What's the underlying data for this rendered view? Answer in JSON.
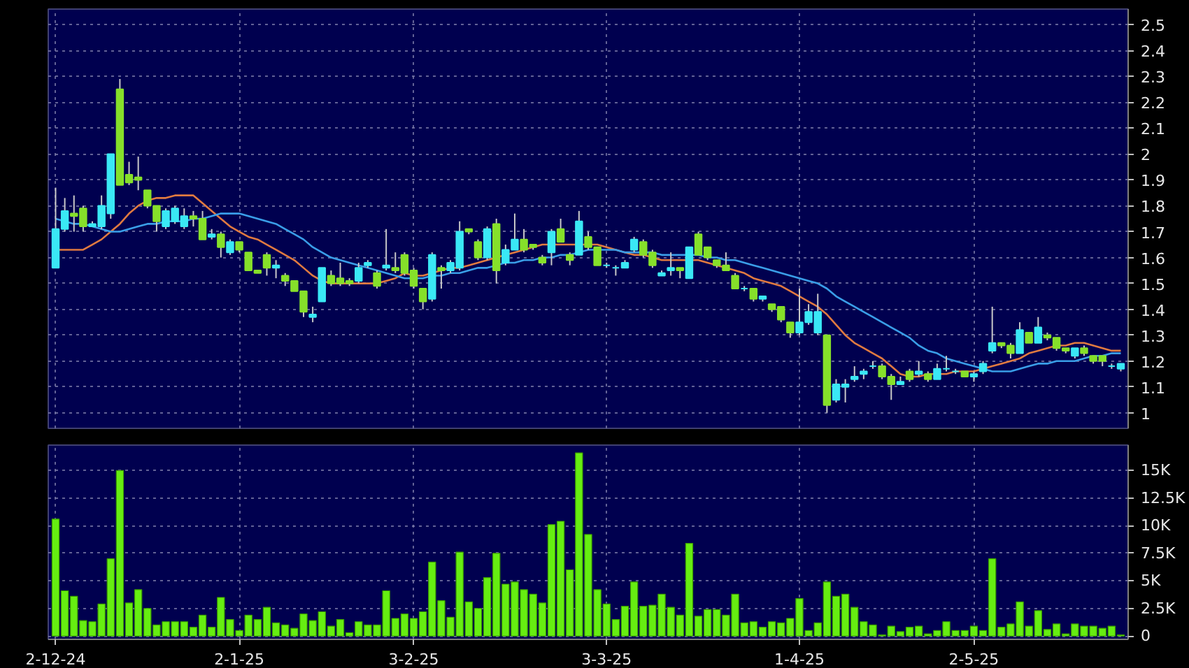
{
  "chart_data": [
    {
      "type": "candlestick",
      "categories": [
        null,
        null,
        null,
        null,
        null,
        null,
        null,
        null,
        null,
        null,
        null,
        null,
        null,
        null,
        null,
        null,
        null,
        null,
        null,
        null,
        null,
        null,
        null,
        null,
        null,
        null,
        null,
        null,
        null,
        null,
        null,
        null,
        null,
        null,
        null,
        null,
        null,
        null,
        null,
        null,
        null,
        null,
        null,
        null,
        null,
        null,
        null,
        null,
        null,
        null,
        null,
        null,
        null,
        null,
        null,
        null,
        null,
        null,
        null,
        null,
        null,
        null,
        null,
        null,
        null,
        null,
        null,
        null,
        null,
        null,
        null,
        null,
        null,
        null,
        null,
        null,
        null,
        null,
        null,
        null,
        null,
        null,
        null,
        null,
        null,
        null,
        null,
        null,
        null,
        null,
        null,
        null,
        null,
        null,
        null,
        null,
        null,
        null,
        null,
        null,
        null,
        null,
        null,
        null,
        null,
        null,
        null,
        null,
        null,
        null,
        null,
        null,
        null,
        null,
        null,
        null,
        null
      ],
      "ohlc": [
        [
          1.56,
          1.87,
          1.56,
          1.71
        ],
        [
          1.71,
          1.83,
          1.7,
          1.78
        ],
        [
          1.77,
          1.84,
          1.7,
          1.76
        ],
        [
          1.79,
          1.8,
          1.7,
          1.72
        ],
        [
          1.72,
          1.74,
          1.72,
          1.73
        ],
        [
          1.72,
          1.84,
          1.71,
          1.8
        ],
        [
          1.77,
          2.0,
          1.75,
          2.0
        ],
        [
          2.25,
          2.29,
          1.88,
          1.88
        ],
        [
          1.92,
          1.97,
          1.88,
          1.89
        ],
        [
          1.91,
          1.99,
          1.86,
          1.9
        ],
        [
          1.86,
          1.86,
          1.79,
          1.8
        ],
        [
          1.8,
          1.8,
          1.7,
          1.74
        ],
        [
          1.72,
          1.79,
          1.71,
          1.78
        ],
        [
          1.74,
          1.8,
          1.73,
          1.79
        ],
        [
          1.72,
          1.79,
          1.71,
          1.76
        ],
        [
          1.76,
          1.78,
          1.72,
          1.75
        ],
        [
          1.75,
          1.78,
          1.67,
          1.67
        ],
        [
          1.68,
          1.71,
          1.67,
          1.69
        ],
        [
          1.69,
          1.7,
          1.6,
          1.64
        ],
        [
          1.62,
          1.67,
          1.61,
          1.66
        ],
        [
          1.66,
          1.66,
          1.62,
          1.63
        ],
        [
          1.62,
          1.62,
          1.55,
          1.55
        ],
        [
          1.55,
          1.55,
          1.54,
          1.54
        ],
        [
          1.61,
          1.62,
          1.53,
          1.56
        ],
        [
          1.56,
          1.59,
          1.52,
          1.57
        ],
        [
          1.53,
          1.54,
          1.49,
          1.51
        ],
        [
          1.51,
          1.51,
          1.47,
          1.47
        ],
        [
          1.47,
          1.47,
          1.37,
          1.39
        ],
        [
          1.37,
          1.41,
          1.35,
          1.38
        ],
        [
          1.43,
          1.56,
          1.43,
          1.56
        ],
        [
          1.53,
          1.55,
          1.49,
          1.5
        ],
        [
          1.52,
          1.58,
          1.49,
          1.5
        ],
        [
          1.51,
          1.52,
          1.49,
          1.5
        ],
        [
          1.51,
          1.58,
          1.5,
          1.56
        ],
        [
          1.57,
          1.59,
          1.56,
          1.58
        ],
        [
          1.54,
          1.55,
          1.48,
          1.49
        ],
        [
          1.56,
          1.71,
          1.55,
          1.57
        ],
        [
          1.56,
          1.62,
          1.54,
          1.55
        ],
        [
          1.61,
          1.62,
          1.53,
          1.54
        ],
        [
          1.55,
          1.56,
          1.48,
          1.49
        ],
        [
          1.48,
          1.48,
          1.4,
          1.43
        ],
        [
          1.44,
          1.62,
          1.43,
          1.61
        ],
        [
          1.56,
          1.57,
          1.48,
          1.55
        ],
        [
          1.55,
          1.59,
          1.54,
          1.58
        ],
        [
          1.56,
          1.74,
          1.55,
          1.7
        ],
        [
          1.71,
          1.71,
          1.69,
          1.7
        ],
        [
          1.66,
          1.67,
          1.59,
          1.6
        ],
        [
          1.6,
          1.72,
          1.59,
          1.71
        ],
        [
          1.73,
          1.75,
          1.5,
          1.55
        ],
        [
          1.58,
          1.65,
          1.57,
          1.63
        ],
        [
          1.63,
          1.77,
          1.63,
          1.67
        ],
        [
          1.67,
          1.71,
          1.62,
          1.63
        ],
        [
          1.65,
          1.65,
          1.63,
          1.64
        ],
        [
          1.6,
          1.61,
          1.57,
          1.58
        ],
        [
          1.62,
          1.71,
          1.57,
          1.7
        ],
        [
          1.71,
          1.75,
          1.66,
          1.66
        ],
        [
          1.61,
          1.62,
          1.57,
          1.59
        ],
        [
          1.61,
          1.78,
          1.61,
          1.74
        ],
        [
          1.68,
          1.7,
          1.63,
          1.64
        ],
        [
          1.64,
          1.64,
          1.57,
          1.57
        ],
        [
          1.57,
          1.58,
          1.56,
          1.57
        ],
        [
          1.56,
          1.57,
          1.53,
          1.56
        ],
        [
          1.56,
          1.59,
          1.56,
          1.58
        ],
        [
          1.63,
          1.68,
          1.62,
          1.67
        ],
        [
          1.66,
          1.67,
          1.6,
          1.61
        ],
        [
          1.62,
          1.63,
          1.56,
          1.57
        ],
        [
          1.53,
          1.55,
          1.53,
          1.54
        ],
        [
          1.55,
          1.62,
          1.53,
          1.56
        ],
        [
          1.56,
          1.56,
          1.52,
          1.55
        ],
        [
          1.52,
          1.64,
          1.52,
          1.64
        ],
        [
          1.69,
          1.7,
          1.61,
          1.61
        ],
        [
          1.64,
          1.64,
          1.59,
          1.6
        ],
        [
          1.59,
          1.59,
          1.56,
          1.57
        ],
        [
          1.57,
          1.62,
          1.55,
          1.55
        ],
        [
          1.53,
          1.54,
          1.48,
          1.48
        ],
        [
          1.48,
          1.49,
          1.47,
          1.48
        ],
        [
          1.48,
          1.48,
          1.43,
          1.44
        ],
        [
          1.44,
          1.45,
          1.43,
          1.45
        ],
        [
          1.42,
          1.42,
          1.39,
          1.4
        ],
        [
          1.41,
          1.41,
          1.35,
          1.36
        ],
        [
          1.35,
          1.35,
          1.29,
          1.31
        ],
        [
          1.31,
          1.48,
          1.3,
          1.35
        ],
        [
          1.35,
          1.42,
          1.34,
          1.39
        ],
        [
          1.31,
          1.46,
          1.3,
          1.39
        ],
        [
          1.3,
          1.3,
          1.0,
          1.03
        ],
        [
          1.05,
          1.13,
          1.04,
          1.11
        ],
        [
          1.1,
          1.13,
          1.04,
          1.11
        ],
        [
          1.13,
          1.18,
          1.12,
          1.14
        ],
        [
          1.15,
          1.17,
          1.13,
          1.16
        ],
        [
          1.18,
          1.2,
          1.17,
          1.18
        ],
        [
          1.18,
          1.19,
          1.13,
          1.14
        ],
        [
          1.14,
          1.15,
          1.05,
          1.11
        ],
        [
          1.11,
          1.14,
          1.11,
          1.12
        ],
        [
          1.16,
          1.17,
          1.12,
          1.13
        ],
        [
          1.15,
          1.2,
          1.14,
          1.16
        ],
        [
          1.15,
          1.16,
          1.12,
          1.13
        ],
        [
          1.13,
          1.19,
          1.13,
          1.17
        ],
        [
          1.17,
          1.22,
          1.16,
          1.17
        ],
        [
          1.16,
          1.17,
          1.15,
          1.16
        ],
        [
          1.16,
          1.16,
          1.14,
          1.14
        ],
        [
          1.14,
          1.16,
          1.12,
          1.15
        ],
        [
          1.16,
          1.2,
          1.15,
          1.19
        ],
        [
          1.24,
          1.41,
          1.23,
          1.27
        ],
        [
          1.27,
          1.27,
          1.25,
          1.26
        ],
        [
          1.26,
          1.27,
          1.21,
          1.23
        ],
        [
          1.23,
          1.35,
          1.23,
          1.32
        ],
        [
          1.31,
          1.31,
          1.27,
          1.27
        ],
        [
          1.27,
          1.37,
          1.27,
          1.33
        ],
        [
          1.3,
          1.31,
          1.28,
          1.29
        ],
        [
          1.29,
          1.29,
          1.24,
          1.25
        ],
        [
          1.25,
          1.25,
          1.23,
          1.24
        ],
        [
          1.22,
          1.25,
          1.21,
          1.25
        ],
        [
          1.25,
          1.26,
          1.22,
          1.23
        ],
        [
          1.22,
          1.22,
          1.19,
          1.2
        ],
        [
          1.22,
          1.22,
          1.18,
          1.2
        ],
        [
          1.18,
          1.19,
          1.17,
          1.18
        ],
        [
          1.17,
          1.19,
          1.16,
          1.19
        ]
      ],
      "colors": [
        "#3ae8f5",
        "#3ae8f5",
        "#86e02a",
        "#86e02a",
        "#3ae8f5",
        "#3ae8f5",
        "#3ae8f5",
        "#86e02a",
        "#86e02a",
        "#86e02a",
        "#86e02a",
        "#86e02a",
        "#3ae8f5",
        "#3ae8f5",
        "#3ae8f5",
        "#86e02a",
        "#86e02a",
        "#3ae8f5",
        "#86e02a",
        "#3ae8f5",
        "#86e02a",
        "#86e02a",
        "#86e02a",
        "#86e02a",
        "#3ae8f5",
        "#86e02a",
        "#86e02a",
        "#86e02a",
        "#3ae8f5",
        "#3ae8f5",
        "#86e02a",
        "#86e02a",
        "#86e02a",
        "#3ae8f5",
        "#3ae8f5",
        "#86e02a",
        "#3ae8f5",
        "#86e02a",
        "#86e02a",
        "#86e02a",
        "#86e02a",
        "#3ae8f5",
        "#86e02a",
        "#3ae8f5",
        "#3ae8f5",
        "#86e02a",
        "#86e02a",
        "#3ae8f5",
        "#86e02a",
        "#3ae8f5",
        "#3ae8f5",
        "#86e02a",
        "#86e02a",
        "#86e02a",
        "#3ae8f5",
        "#86e02a",
        "#86e02a",
        "#3ae8f5",
        "#86e02a",
        "#86e02a",
        "#3ae8f5",
        "#3ae8f5",
        "#3ae8f5",
        "#3ae8f5",
        "#86e02a",
        "#86e02a",
        "#3ae8f5",
        "#3ae8f5",
        "#86e02a",
        "#3ae8f5",
        "#86e02a",
        "#86e02a",
        "#86e02a",
        "#86e02a",
        "#86e02a",
        "#3ae8f5",
        "#86e02a",
        "#3ae8f5",
        "#86e02a",
        "#86e02a",
        "#86e02a",
        "#3ae8f5",
        "#3ae8f5",
        "#3ae8f5",
        "#86e02a",
        "#3ae8f5",
        "#3ae8f5",
        "#3ae8f5",
        "#3ae8f5",
        "#3ae8f5",
        "#86e02a",
        "#86e02a",
        "#3ae8f5",
        "#86e02a",
        "#3ae8f5",
        "#86e02a",
        "#3ae8f5",
        "#3ae8f5",
        "#3ae8f5",
        "#86e02a",
        "#3ae8f5",
        "#3ae8f5",
        "#3ae8f5",
        "#86e02a",
        "#86e02a",
        "#3ae8f5",
        "#86e02a",
        "#3ae8f5",
        "#86e02a",
        "#86e02a",
        "#86e02a",
        "#3ae8f5",
        "#86e02a",
        "#86e02a",
        "#86e02a",
        "#3ae8f5",
        "#3ae8f5"
      ],
      "series": [
        {
          "type": "line",
          "color": "#e07a40",
          "values": [
            1.63,
            1.63,
            1.63,
            1.63,
            1.65,
            1.67,
            1.7,
            1.73,
            1.77,
            1.8,
            1.82,
            1.83,
            1.83,
            1.84,
            1.84,
            1.84,
            1.81,
            1.78,
            1.75,
            1.72,
            1.7,
            1.68,
            1.67,
            1.65,
            1.63,
            1.61,
            1.59,
            1.56,
            1.53,
            1.51,
            1.5,
            1.5,
            1.5,
            1.5,
            1.5,
            1.5,
            1.51,
            1.52,
            1.54,
            1.53,
            1.53,
            1.54,
            1.55,
            1.56,
            1.56,
            1.57,
            1.58,
            1.59,
            1.6,
            1.61,
            1.62,
            1.63,
            1.64,
            1.65,
            1.65,
            1.65,
            1.65,
            1.65,
            1.65,
            1.65,
            1.64,
            1.63,
            1.62,
            1.61,
            1.61,
            1.6,
            1.59,
            1.59,
            1.59,
            1.59,
            1.59,
            1.58,
            1.57,
            1.56,
            1.55,
            1.54,
            1.52,
            1.51,
            1.5,
            1.49,
            1.47,
            1.45,
            1.43,
            1.41,
            1.38,
            1.34,
            1.3,
            1.27,
            1.25,
            1.23,
            1.21,
            1.18,
            1.15,
            1.14,
            1.14,
            1.15,
            1.15,
            1.15,
            1.16,
            1.16,
            1.16,
            1.17,
            1.18,
            1.19,
            1.2,
            1.21,
            1.23,
            1.24,
            1.25,
            1.26,
            1.26,
            1.27,
            1.27,
            1.26,
            1.25,
            1.24,
            1.24
          ]
        },
        {
          "type": "line",
          "color": "#3a9ee8",
          "values": [
            1.75,
            1.74,
            1.73,
            1.73,
            1.72,
            1.71,
            1.7,
            1.7,
            1.71,
            1.72,
            1.73,
            1.73,
            1.74,
            1.74,
            1.74,
            1.75,
            1.75,
            1.76,
            1.77,
            1.77,
            1.77,
            1.76,
            1.75,
            1.74,
            1.73,
            1.71,
            1.69,
            1.67,
            1.64,
            1.62,
            1.6,
            1.59,
            1.58,
            1.57,
            1.56,
            1.55,
            1.54,
            1.53,
            1.52,
            1.52,
            1.52,
            1.53,
            1.53,
            1.54,
            1.54,
            1.55,
            1.56,
            1.56,
            1.57,
            1.58,
            1.58,
            1.59,
            1.59,
            1.6,
            1.6,
            1.61,
            1.61,
            1.62,
            1.63,
            1.63,
            1.63,
            1.63,
            1.62,
            1.62,
            1.62,
            1.62,
            1.61,
            1.61,
            1.61,
            1.61,
            1.61,
            1.6,
            1.6,
            1.59,
            1.59,
            1.58,
            1.57,
            1.56,
            1.55,
            1.54,
            1.53,
            1.52,
            1.51,
            1.5,
            1.48,
            1.45,
            1.43,
            1.41,
            1.39,
            1.37,
            1.35,
            1.33,
            1.31,
            1.29,
            1.26,
            1.24,
            1.23,
            1.21,
            1.2,
            1.19,
            1.18,
            1.17,
            1.16,
            1.16,
            1.16,
            1.17,
            1.18,
            1.19,
            1.19,
            1.2,
            1.2,
            1.2,
            1.21,
            1.22,
            1.22,
            1.23,
            1.23
          ]
        }
      ],
      "ylim": [
        0.94,
        2.56
      ],
      "yticks": [
        1,
        1.1,
        1.2,
        1.3,
        1.4,
        1.5,
        1.6,
        1.7,
        1.8,
        1.9,
        2,
        2.1,
        2.2,
        2.3,
        2.4,
        2.5
      ],
      "grid": true,
      "tick_labels": "y"
    },
    {
      "type": "bar",
      "categories": [
        "2-12-24",
        null,
        null,
        null,
        null,
        null,
        null,
        null,
        null,
        null,
        null,
        null,
        null,
        null,
        null,
        null,
        null,
        null,
        null,
        null,
        "2-1-25",
        null,
        null,
        null,
        null,
        null,
        null,
        null,
        null,
        null,
        null,
        null,
        null,
        null,
        null,
        null,
        null,
        null,
        null,
        "3-2-25",
        null,
        null,
        null,
        null,
        null,
        null,
        null,
        null,
        null,
        null,
        null,
        null,
        null,
        null,
        null,
        null,
        null,
        null,
        null,
        null,
        "3-3-25",
        null,
        null,
        null,
        null,
        null,
        null,
        null,
        null,
        null,
        null,
        null,
        null,
        null,
        null,
        null,
        null,
        null,
        null,
        null,
        null,
        "1-4-25",
        null,
        null,
        null,
        null,
        null,
        null,
        null,
        null,
        null,
        null,
        null,
        null,
        null,
        null,
        null,
        null,
        null,
        null,
        "2-5-25",
        null,
        null,
        null,
        null,
        null,
        null,
        null,
        null,
        null,
        null,
        null,
        null,
        null,
        null,
        null,
        null
      ],
      "values": [
        10600,
        4100,
        3600,
        1400,
        1300,
        2900,
        7000,
        15000,
        3000,
        4200,
        2500,
        1000,
        1300,
        1300,
        1300,
        800,
        1900,
        800,
        3500,
        1500,
        500,
        1900,
        1500,
        2600,
        1200,
        1000,
        700,
        2000,
        1400,
        2200,
        900,
        1500,
        300,
        1300,
        1000,
        1000,
        4100,
        1600,
        2000,
        1600,
        2200,
        6700,
        3200,
        1700,
        7600,
        3100,
        2500,
        5300,
        7500,
        4700,
        4900,
        4200,
        3800,
        3000,
        10100,
        10400,
        6000,
        16600,
        9200,
        4200,
        2900,
        1500,
        2700,
        4900,
        2700,
        2800,
        3800,
        2600,
        1900,
        8400,
        1800,
        2400,
        2400,
        1900,
        3800,
        1200,
        1300,
        800,
        1300,
        1200,
        1600,
        3400,
        500,
        1200,
        4900,
        3600,
        3800,
        2600,
        1300,
        1000,
        100,
        900,
        400,
        800,
        900,
        200,
        500,
        1300,
        500,
        500,
        900,
        500,
        7000,
        800,
        1100,
        3100,
        900,
        2300,
        600,
        1100,
        200,
        1100,
        900,
        900,
        700,
        900,
        100
      ],
      "color": "#66ee11",
      "ylim": [
        -300,
        17300
      ],
      "yticks": [
        0,
        {
          "value": 2500,
          "label": "2.5K"
        },
        {
          "value": 5000,
          "label": "5K"
        },
        {
          "value": 7500,
          "label": "7.5K"
        },
        {
          "value": 10000,
          "label": "10K"
        },
        {
          "value": 12500,
          "label": "12.5K"
        },
        {
          "value": 15000,
          "label": "15K"
        }
      ],
      "grid": true
    }
  ]
}
